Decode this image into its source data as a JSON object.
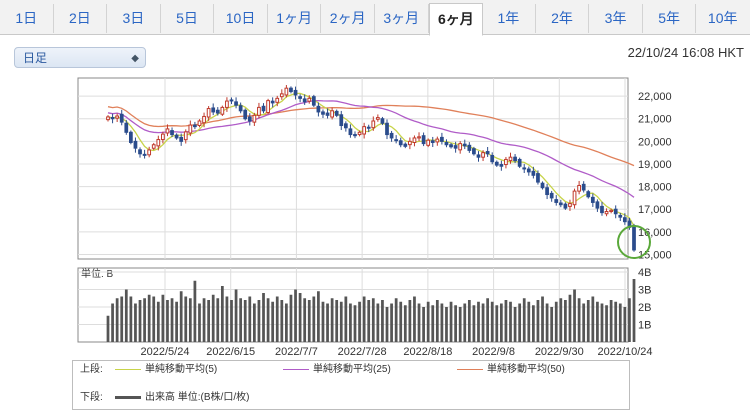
{
  "tabs": [
    {
      "label": "1日"
    },
    {
      "label": "2日"
    },
    {
      "label": "3日"
    },
    {
      "label": "5日"
    },
    {
      "label": "10日"
    },
    {
      "label": "1ヶ月"
    },
    {
      "label": "2ヶ月"
    },
    {
      "label": "3ヶ月"
    },
    {
      "label": "6ヶ月",
      "active": true
    },
    {
      "label": "1年"
    },
    {
      "label": "2年"
    },
    {
      "label": "3年"
    },
    {
      "label": "5年"
    },
    {
      "label": "10年"
    }
  ],
  "period_select": {
    "value": "日足"
  },
  "timestamp": "22/10/24 16:08 HKT",
  "colors": {
    "up": "#c0392b",
    "down": "#2b4c8c",
    "ma5": "#c8d44a",
    "ma25": "#b05cc8",
    "ma50": "#e0805a",
    "volume": "#555555",
    "highlight": "#5aa83a",
    "grid": "#dddddd"
  },
  "chart_data": [
    {
      "type": "candlestick",
      "y_ticks": [
        "22,000",
        "21,000",
        "20,000",
        "19,000",
        "18,000",
        "17,000",
        "16,000",
        "15,000"
      ],
      "y_tick_values": [
        22000,
        21000,
        20000,
        19000,
        18000,
        17000,
        16000,
        15000
      ],
      "ylim": [
        14800,
        22800
      ],
      "x_labels": [
        "2022/5/24",
        "2022/6/15",
        "2022/7/7",
        "2022/7/28",
        "2022/8/18",
        "2022/9/8",
        "2022/9/30",
        "2022/10/24"
      ],
      "trading_days": 116,
      "series_close": [
        21080,
        21000,
        21120,
        20850,
        20400,
        19950,
        19700,
        19450,
        19380,
        19620,
        19850,
        20080,
        20320,
        20550,
        20300,
        20150,
        20000,
        20420,
        20720,
        20650,
        20900,
        21100,
        21450,
        21300,
        21250,
        21500,
        21780,
        21820,
        21600,
        21350,
        21000,
        20900,
        21150,
        21500,
        21350,
        21800,
        21700,
        21900,
        22100,
        22350,
        22200,
        22050,
        21900,
        21750,
        21900,
        21600,
        21300,
        21200,
        21150,
        21350,
        21150,
        20700,
        20600,
        20300,
        20250,
        20400,
        20650,
        20580,
        20900,
        21050,
        20800,
        20300,
        20150,
        20050,
        19850,
        19780,
        20000,
        20150,
        20200,
        19900,
        20050,
        19950,
        20100,
        20000,
        19850,
        19760,
        19700,
        19900,
        19800,
        19600,
        19450,
        19300,
        19500,
        19450,
        19100,
        18950,
        18900,
        19200,
        19300,
        19150,
        18900,
        18800,
        18650,
        18500,
        18200,
        17950,
        17650,
        17500,
        17300,
        17200,
        17050,
        17250,
        17800,
        18050,
        17850,
        17550,
        17300,
        17050,
        16850,
        16900,
        16950,
        16800,
        16650,
        16450,
        16200,
        15200
      ],
      "ma_legend": [
        {
          "label": "単純移動平均(5)",
          "color": "#c8d44a"
        },
        {
          "label": "単純移動平均(25)",
          "color": "#b05cc8"
        },
        {
          "label": "単純移動平均(50)",
          "color": "#e0805a"
        }
      ],
      "highlight_last": true
    },
    {
      "type": "bar",
      "title": "単位: B",
      "y_ticks": [
        "4B",
        "3B",
        "2B",
        "1B"
      ],
      "y_tick_values": [
        4,
        3,
        2,
        1
      ],
      "ylim": [
        0,
        4
      ],
      "values": [
        1.5,
        2.2,
        2.5,
        2.6,
        3.0,
        2.6,
        2.2,
        2.4,
        2.5,
        2.7,
        2.6,
        2.3,
        2.7,
        2.4,
        2.5,
        2.3,
        2.9,
        2.6,
        2.5,
        3.5,
        2.2,
        2.5,
        2.4,
        2.7,
        2.5,
        3.2,
        2.6,
        2.4,
        3.0,
        2.5,
        2.4,
        2.6,
        2.2,
        2.4,
        2.8,
        2.5,
        2.3,
        2.6,
        2.4,
        2.2,
        2.7,
        3.0,
        2.8,
        2.5,
        2.4,
        2.6,
        2.9,
        2.3,
        2.2,
        2.5,
        2.4,
        2.3,
        2.6,
        2.2,
        2.1,
        2.3,
        2.6,
        2.4,
        2.5,
        2.2,
        2.4,
        2.0,
        2.2,
        2.5,
        2.3,
        2.1,
        2.4,
        2.6,
        2.2,
        2.0,
        2.3,
        2.1,
        2.4,
        2.2,
        2.0,
        2.3,
        2.1,
        2.0,
        2.2,
        2.4,
        2.1,
        2.3,
        2.2,
        2.5,
        2.3,
        2.1,
        2.2,
        2.4,
        2.3,
        2.0,
        2.2,
        2.5,
        2.3,
        2.1,
        2.4,
        2.6,
        2.2,
        2.0,
        2.3,
        2.5,
        2.4,
        2.7,
        3.0,
        2.5,
        2.2,
        2.4,
        2.6,
        2.3,
        2.2,
        2.1,
        2.4,
        2.3,
        2.2,
        2.0,
        2.5,
        3.6
      ]
    }
  ],
  "legend": {
    "upper_label": "上段:",
    "lower_label": "下段:",
    "ma5_label": "単純移動平均(5)",
    "ma25_label": "単純移動平均(25)",
    "ma50_label": "単純移動平均(50)",
    "volume_label": "出来高 単位:(B株/口/枚)"
  }
}
